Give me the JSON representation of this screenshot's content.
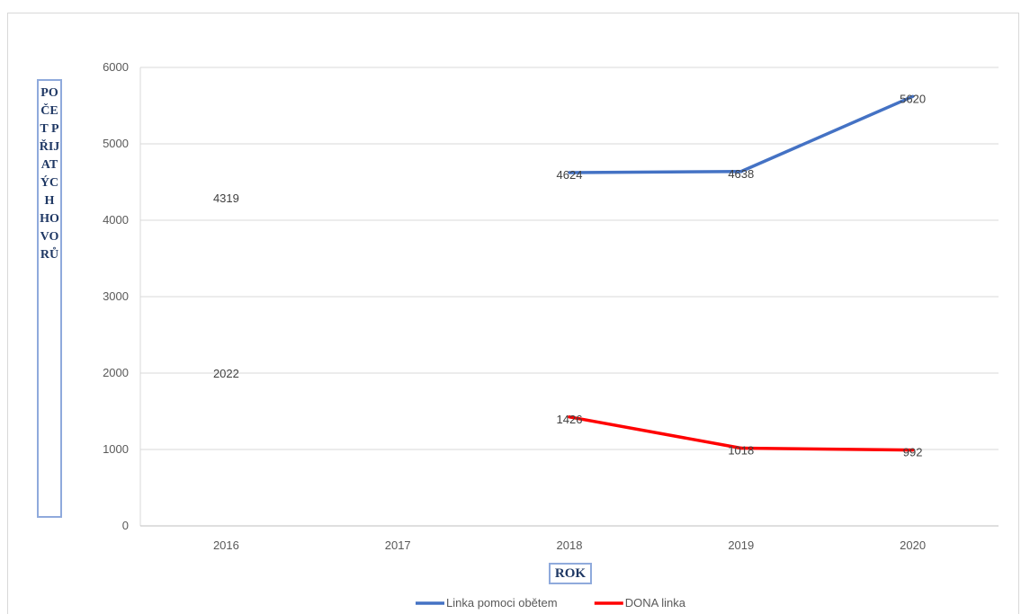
{
  "chart_data": {
    "type": "line",
    "title": "",
    "xlabel": "ROK",
    "ylabel": "POČET PŘIJATÝCH HOVORŮ",
    "categories": [
      "2016",
      "2017",
      "2018",
      "2019",
      "2020"
    ],
    "ylim": [
      0,
      6000
    ],
    "yticks": [
      "0",
      "1000",
      "2000",
      "3000",
      "4000",
      "5000",
      "6000"
    ],
    "grid": true,
    "legend_position": "bottom",
    "series": [
      {
        "name": "Linka pomoci obětem",
        "color": "#4472c4",
        "values": [
          4319,
          null,
          4624,
          4638,
          5620
        ],
        "labels": [
          "4319",
          "",
          "4624",
          "4638",
          "5620"
        ]
      },
      {
        "name": "DONA linka",
        "color": "#ff0000",
        "values": [
          2022,
          null,
          1426,
          1018,
          992
        ],
        "labels": [
          "2022",
          "",
          "1426",
          "1018",
          "992"
        ]
      }
    ]
  }
}
